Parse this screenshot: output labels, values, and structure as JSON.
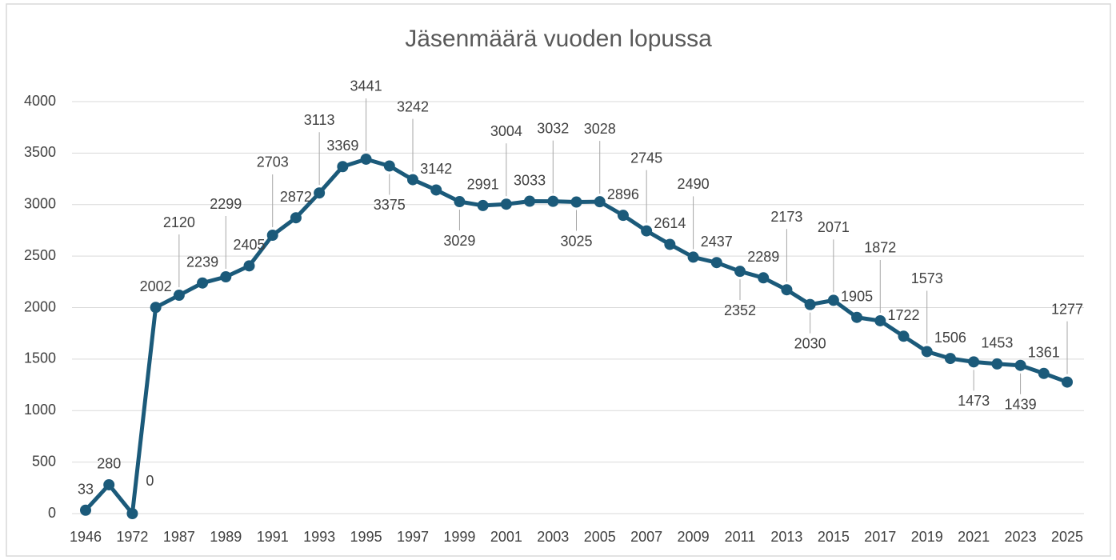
{
  "chart_data": {
    "type": "line",
    "title": "Jäsenmäärä vuoden lopussa",
    "categories": [
      "1946",
      null,
      "1972",
      null,
      "1987",
      null,
      "1989",
      null,
      "1991",
      null,
      "1993",
      null,
      "1995",
      null,
      "1997",
      null,
      "1999",
      null,
      "2001",
      null,
      "2003",
      null,
      "2005",
      null,
      "2007",
      null,
      "2009",
      null,
      "2011",
      null,
      "2013",
      null,
      "2015",
      null,
      "2017",
      null,
      "2019",
      null,
      "2021",
      null,
      "2023",
      null,
      "2025"
    ],
    "series": [
      {
        "name": "Jäsenmäärä",
        "color": "#1b5a7a",
        "values": [
          33,
          280,
          0,
          2002,
          2120,
          2239,
          2299,
          2405,
          2703,
          2872,
          3113,
          3369,
          3441,
          3375,
          3242,
          3142,
          3029,
          2991,
          3004,
          3033,
          3032,
          3025,
          3028,
          2896,
          2745,
          2614,
          2490,
          2437,
          2352,
          2289,
          2173,
          2030,
          2071,
          1905,
          1872,
          1722,
          1573,
          1506,
          1473,
          1453,
          1439,
          1361,
          1277
        ]
      }
    ],
    "ylim": [
      0,
      4000
    ],
    "yticks": [
      0,
      500,
      1000,
      1500,
      2000,
      2500,
      3000,
      3500,
      4000
    ],
    "grid": true
  }
}
